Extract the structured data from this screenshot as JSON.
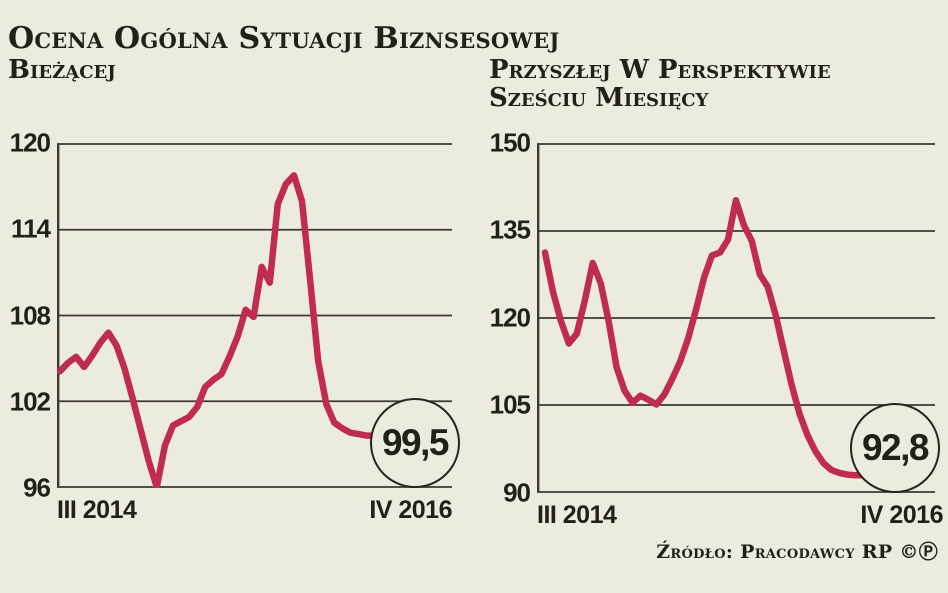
{
  "title": "Ocena Ogólna Sytuacji Biznsesowej",
  "source": "Źródło: Pracodawcy RP ©Ⓟ",
  "colors": {
    "background": "#ECEBE0",
    "line": "#C02C50",
    "grid": "#3B3A33",
    "text": "#21201B"
  },
  "chart_data": [
    {
      "type": "line",
      "title": "Bieżącej",
      "title_lines": [
        "Bieżącej"
      ],
      "legend": "none",
      "grid": "horizontal",
      "ylim": [
        96,
        120
      ],
      "y_ticks": [
        120,
        114,
        108,
        102,
        96
      ],
      "x_ticks": [
        "III 2014",
        "IV 2016"
      ],
      "end_value_label": "99,5",
      "end_value": 99.5,
      "values": [
        104.1,
        104.7,
        105.1,
        104.4,
        105.2,
        106.1,
        106.8,
        105.9,
        104.3,
        102.2,
        100.0,
        97.8,
        96.0,
        98.9,
        100.3,
        100.6,
        100.9,
        101.6,
        103.0,
        103.5,
        103.9,
        105.1,
        106.5,
        108.4,
        107.9,
        111.4,
        110.3,
        115.8,
        117.2,
        117.8,
        116.0,
        110.5,
        104.8,
        101.8,
        100.5,
        100.1,
        99.8,
        99.7,
        99.6,
        99.6,
        99.5,
        99.5,
        99.5,
        99.5,
        99.5
      ]
    },
    {
      "type": "line",
      "title": "Przyszłej W Perspektywie Sześciu Miesięcy",
      "title_lines": [
        "Przyszłej W Perspektywie",
        "Sześciu Miesięcy"
      ],
      "legend": "none",
      "grid": "horizontal",
      "ylim": [
        90,
        150
      ],
      "y_ticks": [
        150,
        135,
        120,
        105,
        90
      ],
      "x_ticks": [
        "III 2014",
        "IV 2016"
      ],
      "end_value_label": "92,8",
      "end_value": 92.8,
      "values": [
        131.3,
        124.5,
        119.5,
        115.6,
        117.3,
        123.0,
        129.5,
        126.0,
        119.5,
        111.5,
        107.5,
        105.4,
        106.6,
        105.9,
        105.1,
        106.8,
        109.5,
        112.5,
        116.5,
        121.5,
        127.0,
        130.8,
        131.3,
        133.5,
        140.3,
        136.0,
        133.3,
        127.5,
        125.4,
        120.5,
        114.5,
        108.5,
        103.5,
        99.8,
        97.0,
        95.0,
        93.8,
        93.3,
        93.0,
        92.9,
        92.9,
        92.8,
        92.8,
        92.8,
        92.8
      ]
    }
  ]
}
